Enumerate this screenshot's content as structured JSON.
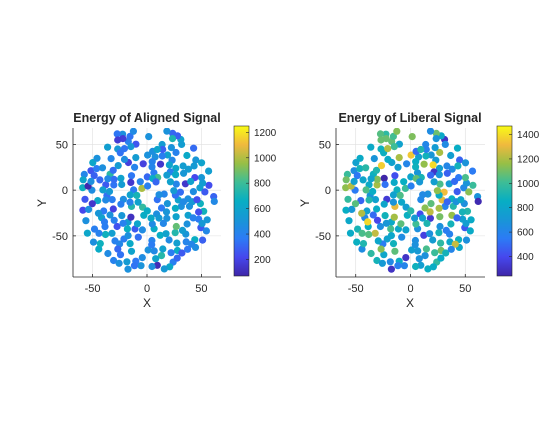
{
  "figure": {
    "background": "#ffffff"
  },
  "chart_data": [
    {
      "type": "scatter",
      "title": "Energy of Aligned Signal",
      "xlabel": "X",
      "ylabel": "Y",
      "xlim": [
        -68,
        68
      ],
      "ylim": [
        -95,
        68
      ],
      "xticks": [
        -50,
        0,
        50
      ],
      "yticks": [
        -50,
        0,
        50
      ],
      "grid": true,
      "colormap": "parula",
      "clim": [
        70,
        1250
      ],
      "colorbar_ticks": [
        200,
        400,
        600,
        800,
        1000,
        1200
      ],
      "value_center": 460,
      "value_spread": 140,
      "seed": 7,
      "points_note_hidden": true
    },
    {
      "type": "scatter",
      "title": "Energy of Liberal Signal",
      "xlabel": "X",
      "ylabel": "Y",
      "xlim": [
        -68,
        68
      ],
      "ylim": [
        -95,
        68
      ],
      "xticks": [
        -50,
        0,
        50
      ],
      "yticks": [
        -50,
        0,
        50
      ],
      "grid": true,
      "colormap": "parula",
      "clim": [
        240,
        1470
      ],
      "colorbar_ticks": [
        400,
        600,
        800,
        1000,
        1200,
        1400
      ],
      "value_center": 820,
      "value_spread": 230,
      "seed": 23,
      "points_note_hidden": true
    }
  ]
}
